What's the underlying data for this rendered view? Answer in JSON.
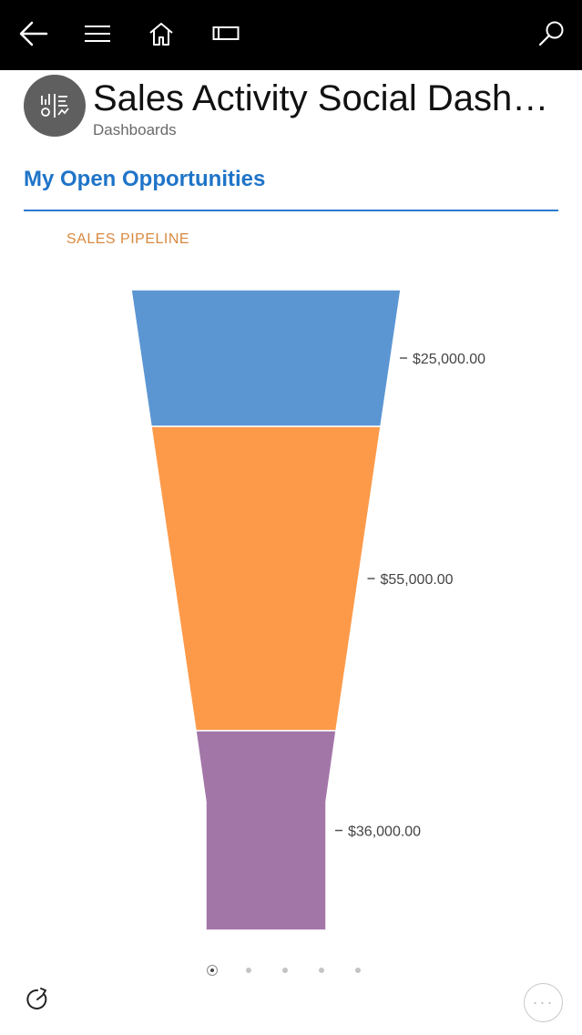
{
  "header": {
    "title": "Sales Activity Social Dashb…",
    "subtitle": "Dashboards"
  },
  "nav": {
    "icons": [
      "back-arrow-icon",
      "hamburger-menu-icon",
      "home-icon",
      "rectangle-view-icon",
      "search-icon"
    ]
  },
  "section": {
    "title": "My Open Opportunities"
  },
  "chart_data": {
    "type": "funnel",
    "title": "SALES PIPELINE",
    "stages": [
      {
        "value": 25000,
        "label": "$25,000.00",
        "color": "#5b96d3"
      },
      {
        "value": 55000,
        "label": "$55,000.00",
        "color": "#fd9a4a"
      },
      {
        "value": 36000,
        "label": "$36,000.00",
        "color": "#a376a8"
      }
    ]
  },
  "pager": {
    "count": 5,
    "active": 0
  },
  "footer": {
    "more_label": "···"
  },
  "colors": {
    "topbar": "#000000",
    "section_accent": "#1f74c8",
    "chart_title": "#d8893f"
  }
}
